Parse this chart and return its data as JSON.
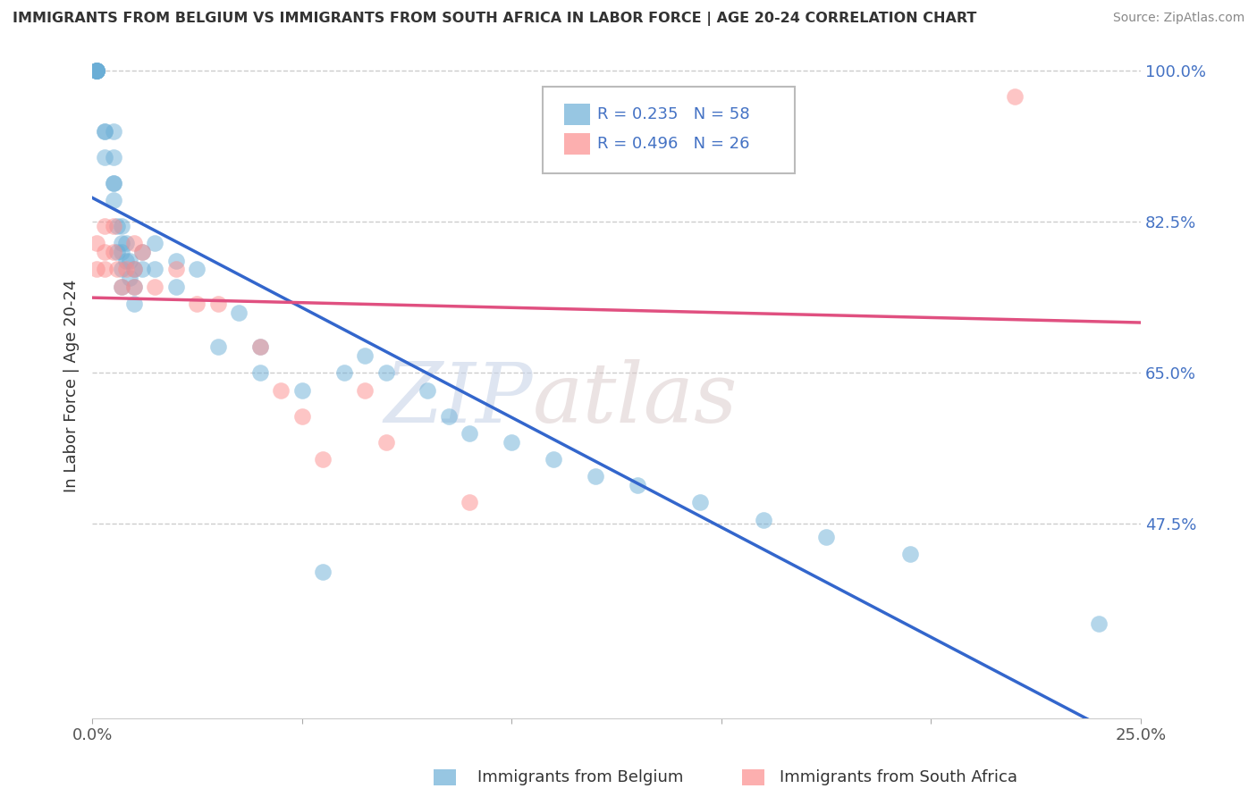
{
  "title": "IMMIGRANTS FROM BELGIUM VS IMMIGRANTS FROM SOUTH AFRICA IN LABOR FORCE | AGE 20-24 CORRELATION CHART",
  "source": "Source: ZipAtlas.com",
  "ylabel": "In Labor Force | Age 20-24",
  "xlim": [
    0.0,
    0.25
  ],
  "ylim": [
    0.25,
    1.02
  ],
  "xticks": [
    0.0,
    0.05,
    0.1,
    0.15,
    0.2,
    0.25
  ],
  "xticklabels": [
    "0.0%",
    "",
    "",
    "",
    "",
    "25.0%"
  ],
  "yticks": [
    0.475,
    0.65,
    0.825,
    1.0
  ],
  "yticklabels_right": [
    "47.5%",
    "65.0%",
    "82.5%",
    "100.0%"
  ],
  "belgium_R": 0.235,
  "belgium_N": 58,
  "sa_R": 0.496,
  "sa_N": 26,
  "belgium_color": "#6baed6",
  "sa_color": "#fc8d8d",
  "belgium_line_color": "#3366cc",
  "sa_line_color": "#e05080",
  "watermark_zip": "ZIP",
  "watermark_atlas": "atlas",
  "belgium_x": [
    0.001,
    0.001,
    0.001,
    0.001,
    0.001,
    0.001,
    0.001,
    0.001,
    0.003,
    0.003,
    0.003,
    0.005,
    0.005,
    0.005,
    0.005,
    0.005,
    0.006,
    0.006,
    0.007,
    0.007,
    0.007,
    0.007,
    0.007,
    0.008,
    0.008,
    0.009,
    0.009,
    0.01,
    0.01,
    0.01,
    0.012,
    0.012,
    0.015,
    0.015,
    0.02,
    0.02,
    0.025,
    0.03,
    0.035,
    0.04,
    0.04,
    0.05,
    0.055,
    0.06,
    0.065,
    0.07,
    0.08,
    0.085,
    0.09,
    0.1,
    0.11,
    0.12,
    0.13,
    0.145,
    0.16,
    0.175,
    0.195,
    0.24
  ],
  "belgium_y": [
    1.0,
    1.0,
    1.0,
    1.0,
    1.0,
    1.0,
    1.0,
    1.0,
    0.93,
    0.93,
    0.9,
    0.93,
    0.9,
    0.87,
    0.87,
    0.85,
    0.82,
    0.79,
    0.82,
    0.8,
    0.79,
    0.77,
    0.75,
    0.8,
    0.78,
    0.78,
    0.76,
    0.77,
    0.75,
    0.73,
    0.79,
    0.77,
    0.8,
    0.77,
    0.78,
    0.75,
    0.77,
    0.68,
    0.72,
    0.68,
    0.65,
    0.63,
    0.42,
    0.65,
    0.67,
    0.65,
    0.63,
    0.6,
    0.58,
    0.57,
    0.55,
    0.53,
    0.52,
    0.5,
    0.48,
    0.46,
    0.44,
    0.36
  ],
  "sa_x": [
    0.001,
    0.001,
    0.003,
    0.003,
    0.003,
    0.005,
    0.005,
    0.006,
    0.007,
    0.008,
    0.01,
    0.01,
    0.01,
    0.012,
    0.015,
    0.02,
    0.025,
    0.03,
    0.04,
    0.045,
    0.05,
    0.055,
    0.065,
    0.07,
    0.09,
    0.22
  ],
  "sa_y": [
    0.8,
    0.77,
    0.82,
    0.79,
    0.77,
    0.82,
    0.79,
    0.77,
    0.75,
    0.77,
    0.8,
    0.77,
    0.75,
    0.79,
    0.75,
    0.77,
    0.73,
    0.73,
    0.68,
    0.63,
    0.6,
    0.55,
    0.63,
    0.57,
    0.5,
    0.97
  ]
}
